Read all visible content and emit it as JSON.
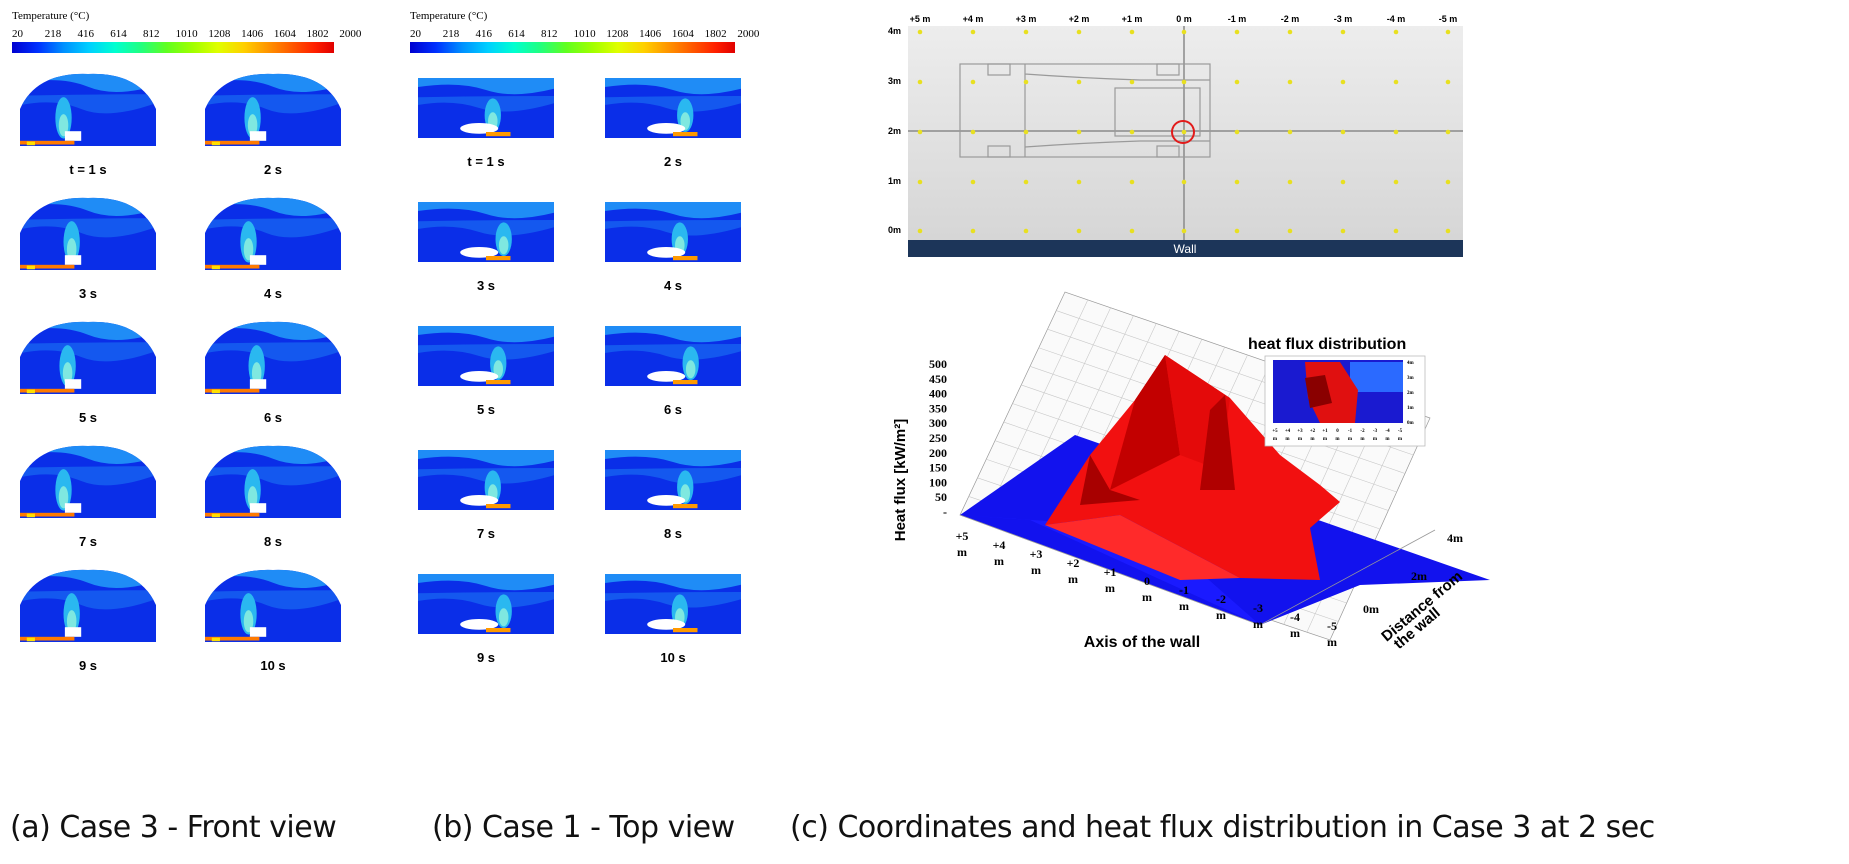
{
  "panel_a": {
    "colorbar_title": "Temperature (°C)",
    "ticks": [
      "20",
      "218",
      "416",
      "614",
      "812",
      "1010",
      "1208",
      "1406",
      "1604",
      "1802",
      "2000"
    ],
    "times": [
      "t = 1 s",
      "2 s",
      "3 s",
      "4 s",
      "5 s",
      "6 s",
      "7 s",
      "8 s",
      "9 s",
      "10 s"
    ],
    "caption": "(a) Case 3 - Front view"
  },
  "panel_b": {
    "colorbar_title": "Temperature (°C)",
    "ticks": [
      "20",
      "218",
      "416",
      "614",
      "812",
      "1010",
      "1208",
      "1406",
      "1604",
      "1802",
      "2000"
    ],
    "times": [
      "t = 1 s",
      "2 s",
      "3 s",
      "4 s",
      "5 s",
      "6 s",
      "7 s",
      "8 s",
      "9 s",
      "10 s"
    ],
    "caption": "(b) Case 1 - Top view"
  },
  "panel_c": {
    "top_x_labels": [
      "+5 m",
      "+4 m",
      "+3 m",
      "+2 m",
      "+1 m",
      "0 m",
      "-1 m",
      "-2 m",
      "-3 m",
      "-4 m",
      "-5 m"
    ],
    "top_y_labels": [
      "4m",
      "3m",
      "2m",
      "1m",
      "0m"
    ],
    "wall_label": "Wall",
    "hf_y_ticks": [
      "500",
      "450",
      "400",
      "350",
      "300",
      "250",
      "200",
      "150",
      "100",
      "50",
      "-"
    ],
    "hf_ylabel": "Heat flux [kW/m²]",
    "hf_x_ticks": [
      "+5 m",
      "+4 m",
      "+3 m",
      "+2 m",
      "+1 m",
      "0 m",
      "-1 m",
      "-2 m",
      "-3 m",
      "-4 m",
      "-5 m"
    ],
    "hf_xlabel": "Axis of the wall",
    "hf_z_ticks": [
      "4m",
      "2m",
      "0m"
    ],
    "hf_zlabel": "Distance from the wall",
    "inset_title": "heat flux distribution",
    "inset_y": [
      "4m",
      "3m",
      "2m",
      "1m",
      "0m"
    ],
    "inset_x": [
      "+5",
      "+4",
      "+3",
      "+2",
      "+1",
      "0",
      "-1",
      "-2",
      "-3",
      "-4",
      "-5"
    ],
    "inset_x_unit": "m",
    "caption": "(c) Coordinates and heat flux distribution in Case 3 at 2 sec"
  }
}
